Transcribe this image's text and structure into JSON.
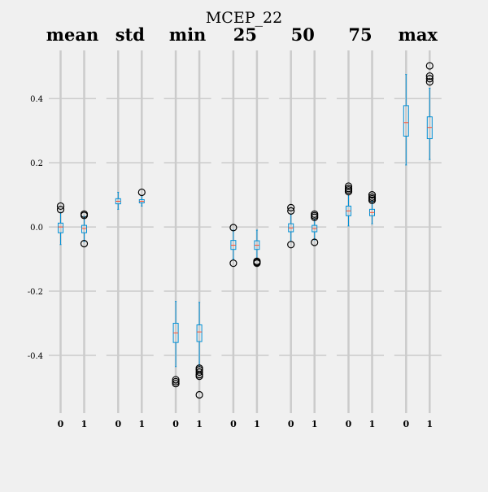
{
  "chart_data": {
    "type": "box",
    "title": "MCEP_22",
    "ylim": [
      -0.58,
      0.55
    ],
    "yticks": [
      0.4,
      0.2,
      0.0,
      -0.2,
      -0.4
    ],
    "ytick_labels": [
      "0.4",
      "0.2",
      "0.0",
      "-0.2",
      "-0.4"
    ],
    "grid": true,
    "colors": {
      "background": "#f0f0f0",
      "grid": "#cbcbcb",
      "box": "#008fd5",
      "median": "#fc4f30",
      "flier": "#000000"
    },
    "panels": [
      {
        "title": "mean",
        "categories": [
          "0",
          "1"
        ],
        "boxes": [
          {
            "whislo": -0.055,
            "q1": -0.018,
            "med": 0.0,
            "q3": 0.012,
            "whishi": 0.045,
            "fliers": [
              0.065,
              0.054
            ]
          },
          {
            "whislo": -0.045,
            "q1": -0.018,
            "med": -0.005,
            "q3": 0.005,
            "whishi": 0.033,
            "fliers": [
              0.04,
              0.036,
              -0.052
            ]
          }
        ]
      },
      {
        "title": "std",
        "categories": [
          "0",
          "1"
        ],
        "boxes": [
          {
            "whislo": 0.055,
            "q1": 0.072,
            "med": 0.08,
            "q3": 0.088,
            "whishi": 0.108,
            "fliers": []
          },
          {
            "whislo": 0.065,
            "q1": 0.075,
            "med": 0.08,
            "q3": 0.085,
            "whishi": 0.097,
            "fliers": [
              0.108
            ]
          }
        ]
      },
      {
        "title": "min",
        "categories": [
          "0",
          "1"
        ],
        "boxes": [
          {
            "whislo": -0.435,
            "q1": -0.36,
            "med": -0.33,
            "q3": -0.3,
            "whishi": -0.232,
            "fliers": [
              -0.476,
              -0.482,
              -0.488
            ]
          },
          {
            "whislo": -0.435,
            "q1": -0.357,
            "med": -0.327,
            "q3": -0.305,
            "whishi": -0.235,
            "fliers": [
              -0.44,
              -0.445,
              -0.452,
              -0.46,
              -0.465,
              -0.523
            ]
          }
        ]
      },
      {
        "title": "25",
        "categories": [
          "0",
          "1"
        ],
        "boxes": [
          {
            "whislo": -0.1,
            "q1": -0.07,
            "med": -0.057,
            "q3": -0.042,
            "whishi": -0.01,
            "fliers": [
              -0.002,
              -0.113
            ]
          },
          {
            "whislo": -0.1,
            "q1": -0.07,
            "med": -0.057,
            "q3": -0.043,
            "whishi": -0.01,
            "fliers": [
              -0.107,
              -0.11,
              -0.113
            ]
          }
        ]
      },
      {
        "title": "50",
        "categories": [
          "0",
          "1"
        ],
        "boxes": [
          {
            "whislo": -0.045,
            "q1": -0.015,
            "med": -0.003,
            "q3": 0.01,
            "whishi": 0.04,
            "fliers": [
              0.06,
              0.05,
              -0.055
            ]
          },
          {
            "whislo": -0.04,
            "q1": -0.015,
            "med": -0.005,
            "q3": 0.005,
            "whishi": 0.025,
            "fliers": [
              0.04,
              0.035,
              0.03,
              -0.048
            ]
          }
        ]
      },
      {
        "title": "75",
        "categories": [
          "0",
          "1"
        ],
        "boxes": [
          {
            "whislo": 0.003,
            "q1": 0.035,
            "med": 0.05,
            "q3": 0.065,
            "whishi": 0.1,
            "fliers": [
              0.127,
              0.12,
              0.115,
              0.11
            ]
          },
          {
            "whislo": 0.01,
            "q1": 0.035,
            "med": 0.045,
            "q3": 0.055,
            "whishi": 0.08,
            "fliers": [
              0.1,
              0.093,
              0.088,
              0.083
            ]
          }
        ]
      },
      {
        "title": "max",
        "categories": [
          "0",
          "1"
        ],
        "boxes": [
          {
            "whislo": 0.193,
            "q1": 0.283,
            "med": 0.325,
            "q3": 0.378,
            "whishi": 0.475,
            "fliers": []
          },
          {
            "whislo": 0.21,
            "q1": 0.275,
            "med": 0.31,
            "q3": 0.343,
            "whishi": 0.432,
            "fliers": [
              0.502,
              0.47,
              0.462,
              0.452
            ]
          }
        ]
      }
    ]
  }
}
